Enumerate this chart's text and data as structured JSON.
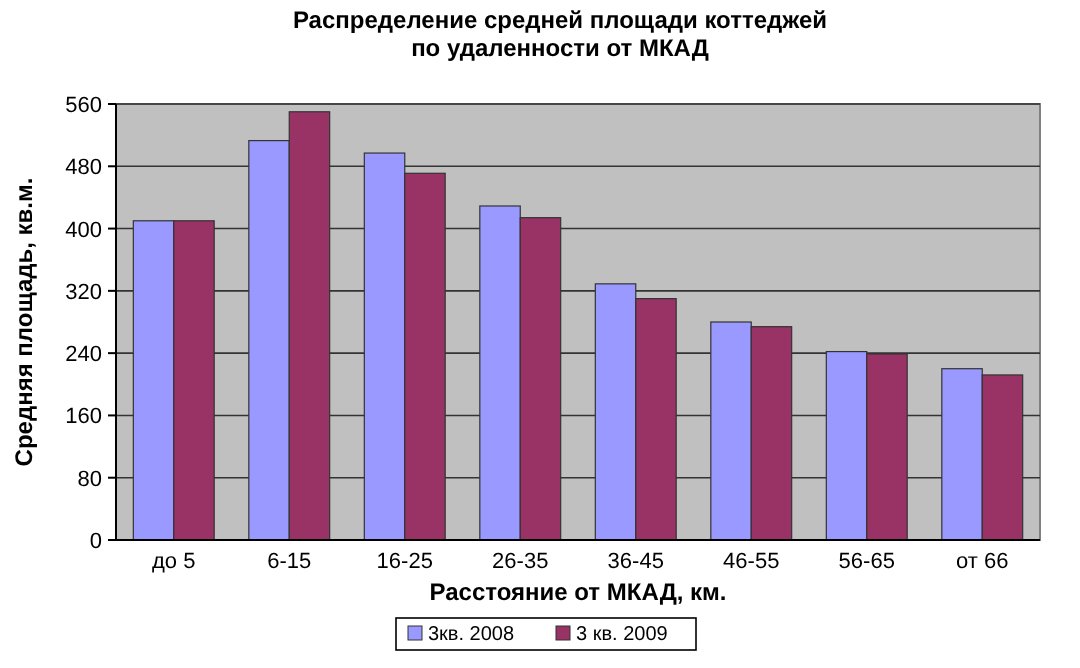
{
  "chart_data": {
    "type": "bar",
    "title": "Распределение средней площади коттеджей по удаленности от МКАД",
    "xlabel": "Расстояние от МКАД, км.",
    "ylabel": "Средняя площадь, кв.м.",
    "categories": [
      "до 5",
      "6-15",
      "16-25",
      "26-35",
      "36-45",
      "46-55",
      "56-65",
      "от 66"
    ],
    "series": [
      {
        "name": "3кв. 2008",
        "color": "#9999ff",
        "values": [
          410,
          513,
          497,
          429,
          329,
          280,
          242,
          220
        ]
      },
      {
        "name": "3 кв. 2009",
        "color": "#993366",
        "values": [
          410,
          550,
          471,
          414,
          310,
          274,
          239,
          212
        ]
      }
    ],
    "ylim": [
      0,
      560
    ],
    "yticks": [
      0,
      80,
      160,
      240,
      320,
      400,
      480,
      560
    ],
    "grid": "y",
    "legend": "bottom"
  }
}
